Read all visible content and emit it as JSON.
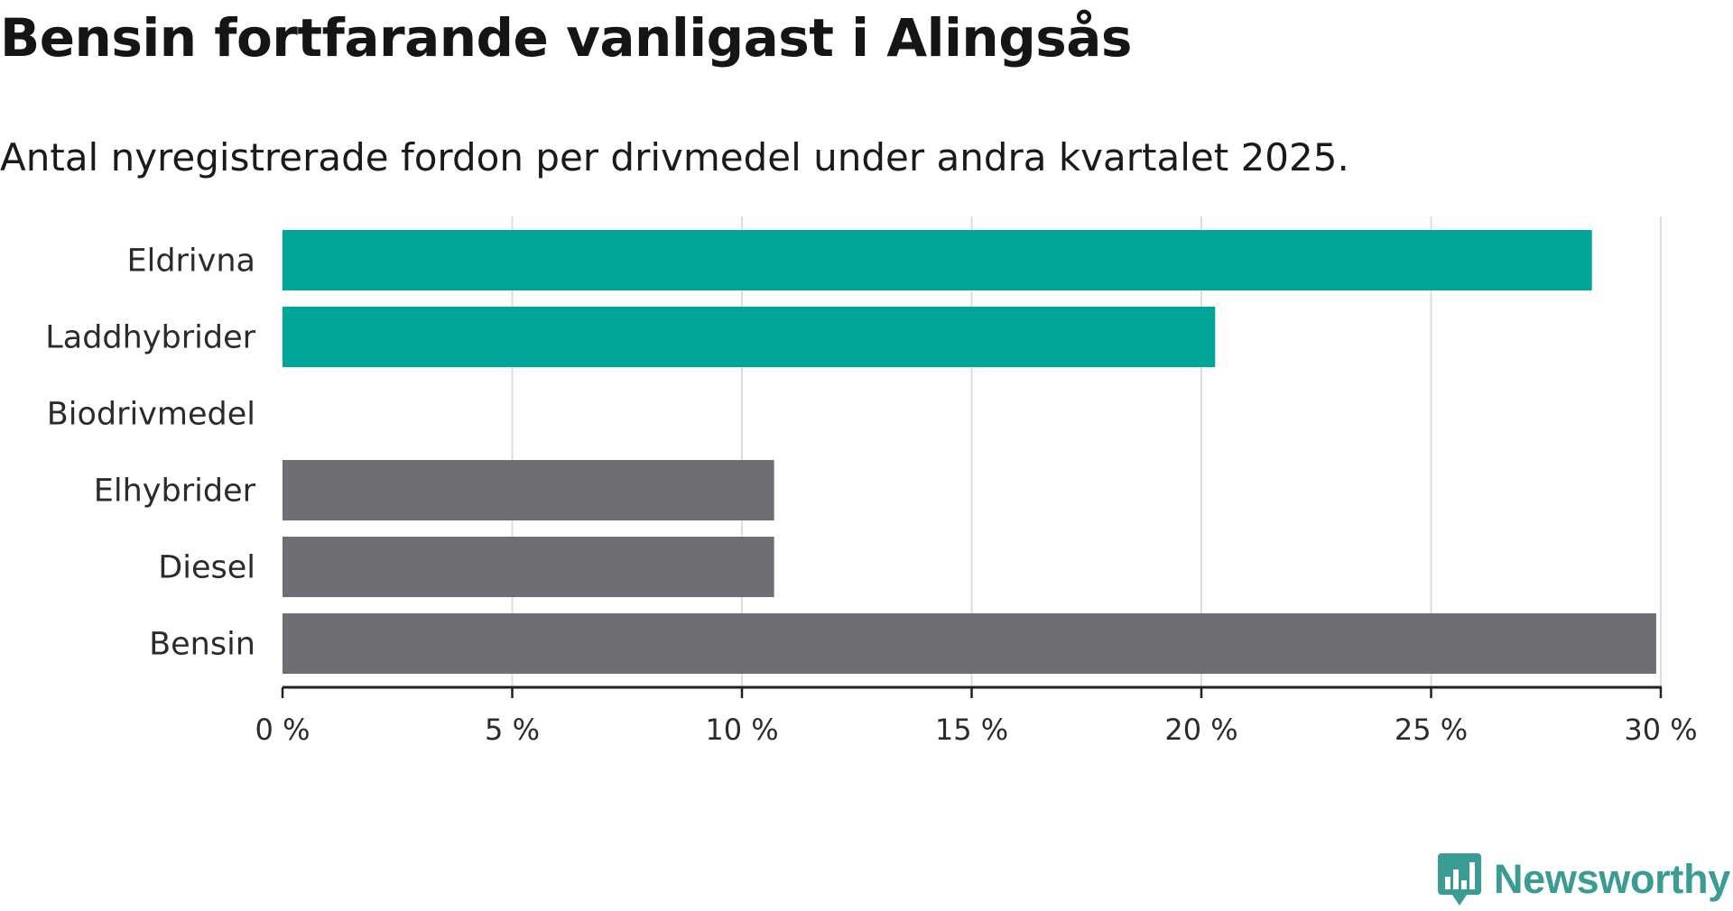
{
  "title": "Bensin fortfarande vanligast i Alingsås",
  "subtitle": "Antal nyregistrerade fordon per drivmedel under andra kvartalet 2025.",
  "logo": {
    "text": "Newsworthy",
    "icon": "newsworthy-bar-chart-icon",
    "color": "#3a9c92"
  },
  "colors": {
    "electric": "#00a499",
    "fossil": "#6f6e74",
    "grid": "#dddddd",
    "axis": "#222222"
  },
  "chart_data": {
    "type": "bar",
    "orientation": "horizontal",
    "categories": [
      "Eldrivna",
      "Laddhybrider",
      "Biodrivmedel",
      "Elhybrider",
      "Diesel",
      "Bensin"
    ],
    "values": [
      28.5,
      20.3,
      0,
      10.7,
      10.7,
      29.9
    ],
    "bar_colors": [
      "#00a499",
      "#00a499",
      "#00a499",
      "#6f6e74",
      "#6f6e74",
      "#6f6e74"
    ],
    "unit": "%",
    "xlim": [
      0,
      30
    ],
    "xticks": [
      0,
      5,
      10,
      15,
      20,
      25,
      30
    ],
    "xtick_labels": [
      "0 %",
      "5 %",
      "10 %",
      "15 %",
      "20 %",
      "25 %",
      "30 %"
    ],
    "grid": true,
    "legend": false
  }
}
